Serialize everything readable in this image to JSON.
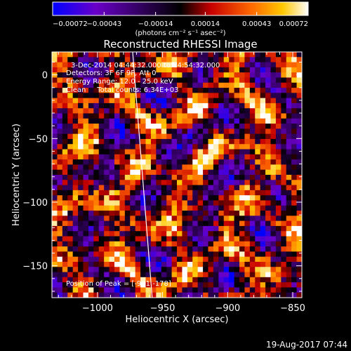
{
  "chart_data": {
    "type": "heatmap",
    "title": "Reconstructed RHESSI Image",
    "xlabel": "Heliocentric X (arcsec)",
    "ylabel": "Heliocentric Y (arcsec)",
    "xlim": [
      -1035,
      -843
    ],
    "ylim": [
      -175,
      18
    ],
    "x_ticks": [
      -1000,
      -950,
      -900,
      -850
    ],
    "x_tick_labels": [
      "−1000",
      "−950",
      "−900",
      "−850"
    ],
    "y_ticks": [
      0,
      -50,
      -100,
      -150
    ],
    "y_tick_labels": [
      "0",
      "−50",
      "−100",
      "−150"
    ],
    "colorbar": {
      "min": -0.00072,
      "max": 0.00072,
      "ticks": [
        -0.00072,
        -0.00043,
        -0.00014,
        0.00014,
        0.00043,
        0.00072
      ],
      "tick_labels": [
        "−0.00072",
        "−0.00043",
        "−0.00014",
        "0.00014",
        "0.00043",
        "0.00072"
      ],
      "unit": "(photons cm⁻² s⁻¹ asec⁻²)",
      "colors": [
        "#0000ff",
        "#6a00c8",
        "#000000",
        "#c80000",
        "#ff6a00",
        "#ffc800",
        "#ffffff"
      ]
    },
    "annotations": {
      "time_range": "3-Dec-2014 04:44:32.000 to 04:54:32.000",
      "detectors": "Detectors: 3F 6F 9F, Att 0",
      "energy_range": "Energy Range: 12.0 - 25.0 keV",
      "clean": "Clean     Total counts: 6.34E+03",
      "peak": "Position of Peak = [-931,-178]"
    },
    "limb_line": {
      "x": [
        -973,
        -958
      ],
      "y": [
        18,
        -175
      ]
    },
    "grid": false
  },
  "footer": {
    "timestamp": "19-Aug-2017 07:44"
  }
}
